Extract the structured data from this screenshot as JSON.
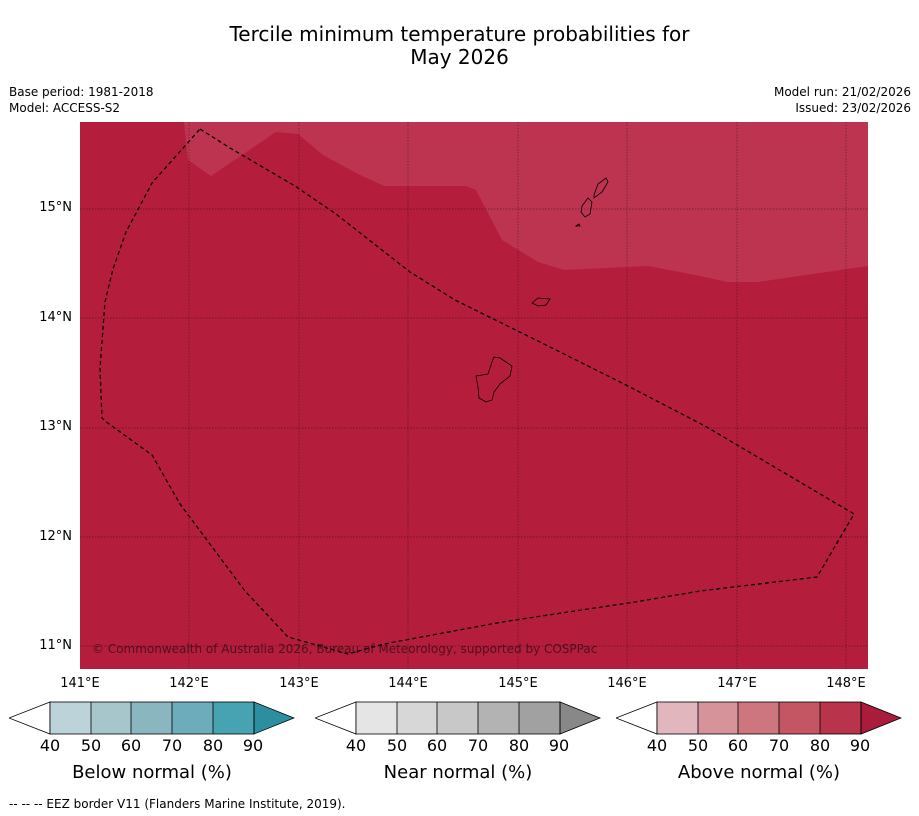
{
  "title_line1": "Tercile minimum temperature probabilities for",
  "title_line2": "May 2026",
  "base_period": "Base period: 1981-2018",
  "model": "Model: ACCESS-S2",
  "model_run": "Model run: 21/02/2026",
  "issued": "Issued: 23/02/2026",
  "lat_labels": [
    "15°N",
    "14°N",
    "13°N",
    "12°N",
    "11°N"
  ],
  "lon_labels": [
    "141°E",
    "142°E",
    "143°E",
    "144°E",
    "145°E",
    "146°E",
    "147°E",
    "148°E"
  ],
  "copyright": "© Commonwealth of Australia 2026, Bureau of Meteorology, supported by COSPPac",
  "colors": {
    "above_80_90": "#b41e3c",
    "above_70_80": "#bc3450",
    "grid": "#000000",
    "coast": "#000000"
  },
  "colorbars": [
    {
      "label": "Below normal (%)",
      "ticks": [
        "40",
        "50",
        "60",
        "70",
        "80",
        "90"
      ],
      "colors": [
        "#bcd3d9",
        "#a6c6cc",
        "#8ab6c0",
        "#6dacbb",
        "#47a2b2"
      ],
      "tail": "#2c8fa0"
    },
    {
      "label": "Near normal (%)",
      "ticks": [
        "40",
        "50",
        "60",
        "70",
        "80",
        "90"
      ],
      "colors": [
        "#e5e5e5",
        "#d7d7d7",
        "#c8c8c8",
        "#b3b3b3",
        "#a1a1a1"
      ],
      "tail": "#888888"
    },
    {
      "label": "Above normal (%)",
      "ticks": [
        "40",
        "50",
        "60",
        "70",
        "80",
        "90"
      ],
      "colors": [
        "#e2b6bd",
        "#d69399",
        "#cd767d",
        "#c45663",
        "#b9344a"
      ],
      "tail": "#a91c3b"
    }
  ],
  "footer": "--  --  -- EEZ border V11 (Flanders Marine Institute, 2019)."
}
